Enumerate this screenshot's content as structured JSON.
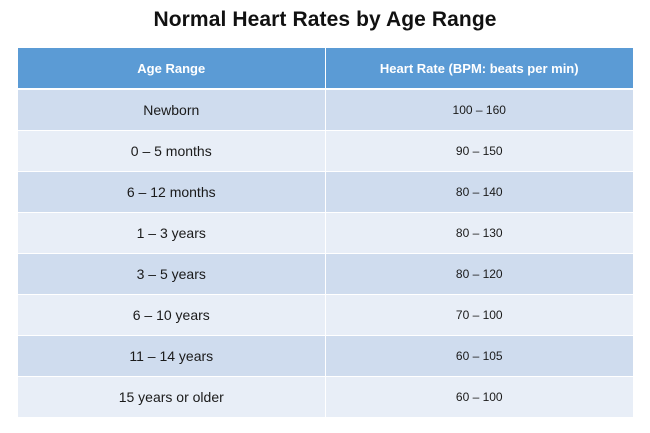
{
  "title": "Normal Heart Rates by Age Range",
  "table": {
    "headers": [
      "Age Range",
      "Heart Rate (BPM: beats per min)"
    ],
    "rows": [
      {
        "age": "Newborn",
        "rate": "100 – 160"
      },
      {
        "age": "0 – 5 months",
        "rate": "90 – 150"
      },
      {
        "age": "6 – 12 months",
        "rate": "80 – 140"
      },
      {
        "age": "1 – 3 years",
        "rate": "80 – 130"
      },
      {
        "age": "3 – 5 years",
        "rate": "80 – 120"
      },
      {
        "age": "6 – 10 years",
        "rate": "70 – 100"
      },
      {
        "age": "11 – 14 years",
        "rate": "60 – 105"
      },
      {
        "age": "15 years or older",
        "rate": "60 – 100"
      }
    ]
  },
  "colors": {
    "header_bg": "#5b9bd5",
    "row_dark": "#cfdcee",
    "row_light": "#e8eef7"
  }
}
